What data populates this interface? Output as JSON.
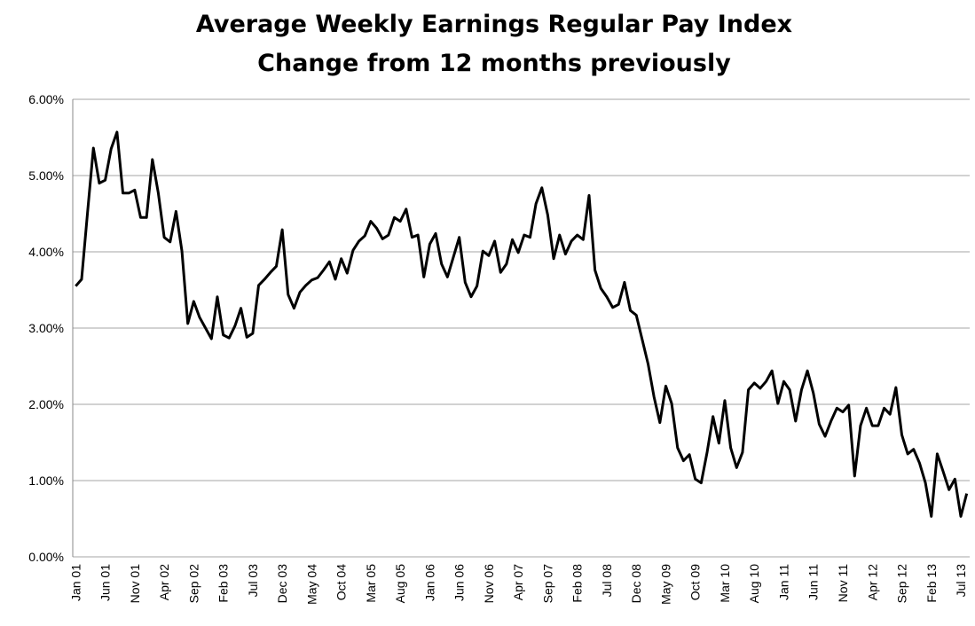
{
  "chart_data": {
    "type": "line",
    "title": "Average Weekly Earnings Regular Pay Index",
    "subtitle": "Change from 12 months previously",
    "categories": [
      "Jan 01",
      null,
      null,
      null,
      null,
      "Jun 01",
      null,
      null,
      null,
      null,
      "Nov 01",
      null,
      null,
      null,
      null,
      "Apr 02",
      null,
      null,
      null,
      null,
      "Sep 02",
      null,
      null,
      null,
      null,
      "Feb 03",
      null,
      null,
      null,
      null,
      "Jul 03",
      null,
      null,
      null,
      null,
      "Dec 03",
      null,
      null,
      null,
      null,
      "May 04",
      null,
      null,
      null,
      null,
      "Oct 04",
      null,
      null,
      null,
      null,
      "Mar 05",
      null,
      null,
      null,
      null,
      "Aug 05",
      null,
      null,
      null,
      null,
      "Jan 06",
      null,
      null,
      null,
      null,
      "Jun 06",
      null,
      null,
      null,
      null,
      "Nov 06",
      null,
      null,
      null,
      null,
      "Apr 07",
      null,
      null,
      null,
      null,
      "Sep 07",
      null,
      null,
      null,
      null,
      "Feb 08",
      null,
      null,
      null,
      null,
      "Jul 08",
      null,
      null,
      null,
      null,
      "Dec 08",
      null,
      null,
      null,
      null,
      "May 09",
      null,
      null,
      null,
      null,
      "Oct 09",
      null,
      null,
      null,
      null,
      "Mar 10",
      null,
      null,
      null,
      null,
      "Aug 10",
      null,
      null,
      null,
      null,
      "Jan 11",
      null,
      null,
      null,
      null,
      "Jun 11",
      null,
      null,
      null,
      null,
      "Nov 11",
      null,
      null,
      null,
      null,
      "Apr 12",
      null,
      null,
      null,
      null,
      "Sep 12",
      null,
      null,
      null,
      null,
      "Feb 13",
      null,
      null,
      null,
      null,
      "Jul 13",
      null
    ],
    "values": [
      3.55,
      3.64,
      4.51,
      5.36,
      4.9,
      4.94,
      5.35,
      5.57,
      4.77,
      4.77,
      4.81,
      4.45,
      4.45,
      5.21,
      4.77,
      4.19,
      4.13,
      4.53,
      4.01,
      3.06,
      3.35,
      3.14,
      3.0,
      2.86,
      3.41,
      2.91,
      2.87,
      3.03,
      3.26,
      2.88,
      2.93,
      3.56,
      3.64,
      3.73,
      3.81,
      4.29,
      3.44,
      3.26,
      3.47,
      3.56,
      3.63,
      3.66,
      3.76,
      3.87,
      3.64,
      3.91,
      3.72,
      4.02,
      4.14,
      4.21,
      4.4,
      4.31,
      4.17,
      4.22,
      4.45,
      4.4,
      4.56,
      4.19,
      4.22,
      3.67,
      4.1,
      4.24,
      3.84,
      3.67,
      3.93,
      4.19,
      3.6,
      3.41,
      3.55,
      4.01,
      3.95,
      4.14,
      3.73,
      3.84,
      4.16,
      3.99,
      4.22,
      4.19,
      4.63,
      4.84,
      4.48,
      3.91,
      4.22,
      3.97,
      4.14,
      4.22,
      4.16,
      4.74,
      3.76,
      3.52,
      3.41,
      3.27,
      3.31,
      3.6,
      3.23,
      3.17,
      2.85,
      2.53,
      2.1,
      1.76,
      2.24,
      2.01,
      1.43,
      1.26,
      1.34,
      1.02,
      0.97,
      1.37,
      1.84,
      1.49,
      2.05,
      1.43,
      1.17,
      1.37,
      2.19,
      2.28,
      2.21,
      2.3,
      2.44,
      2.01,
      2.3,
      2.19,
      1.78,
      2.19,
      2.44,
      2.15,
      1.74,
      1.58,
      1.78,
      1.95,
      1.9,
      1.99,
      1.06,
      1.72,
      1.95,
      1.72,
      1.72,
      1.95,
      1.87,
      2.22,
      1.6,
      1.35,
      1.41,
      1.23,
      0.97,
      0.53,
      1.35,
      1.12,
      0.88,
      1.02,
      0.53,
      0.83
    ],
    "color": "#000000",
    "ylim": [
      0,
      6
    ],
    "yticks": [
      {
        "value": 0,
        "label": "0.00%"
      },
      {
        "value": 1,
        "label": "1.00%"
      },
      {
        "value": 2,
        "label": "2.00%"
      },
      {
        "value": 3,
        "label": "3.00%"
      },
      {
        "value": 4,
        "label": "4.00%"
      },
      {
        "value": 5,
        "label": "5.00%"
      },
      {
        "value": 6,
        "label": "6.00%"
      }
    ],
    "grid": true
  }
}
